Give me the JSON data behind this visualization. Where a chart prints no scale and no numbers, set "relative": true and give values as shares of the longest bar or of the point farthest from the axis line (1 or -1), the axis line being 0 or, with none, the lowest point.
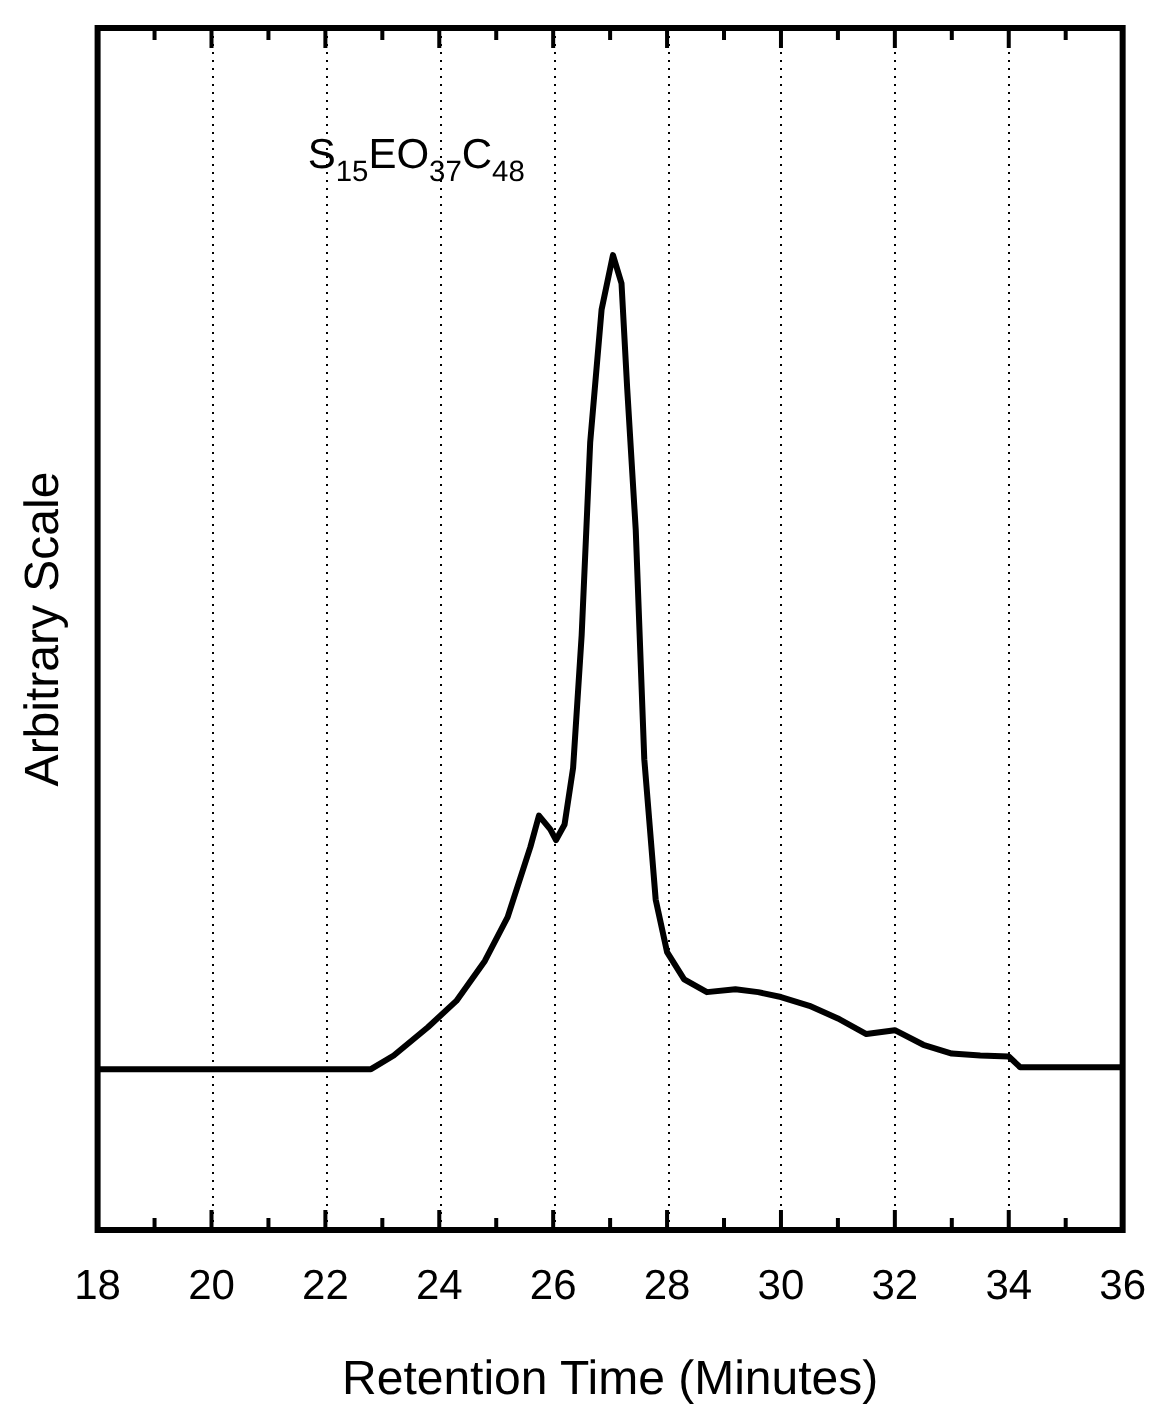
{
  "chart_data": {
    "type": "line",
    "xlabel": "Retention Time (Minutes)",
    "ylabel": "Arbitrary Scale",
    "relative": true,
    "annotations": [
      "S$_{15}$EO$_{37}$C$_{48}$"
    ],
    "xlim": [
      18,
      36
    ],
    "xticks": [
      18,
      {
        "value": 19,
        "label": null
      },
      20,
      {
        "value": 21,
        "label": null
      },
      22,
      {
        "value": 23,
        "label": null
      },
      24,
      {
        "value": 25,
        "label": null
      },
      26,
      {
        "value": 27,
        "label": null
      },
      28,
      {
        "value": 29,
        "label": null
      },
      30,
      {
        "value": 31,
        "label": null
      },
      32,
      {
        "value": 33,
        "label": null
      },
      34,
      {
        "value": 35,
        "label": null
      },
      36
    ],
    "grid": "x",
    "legend": false,
    "marker": "none",
    "line_style": "solid",
    "series": [
      {
        "color": "#000000",
        "x": [
          18,
          22.8,
          23.2,
          23.8,
          24.3,
          24.8,
          25.2,
          25.6,
          25.75,
          25.95,
          26.05,
          26.2,
          26.35,
          26.5,
          26.65,
          26.85,
          27.05,
          27.2,
          27.3,
          27.45,
          27.6,
          27.8,
          28.0,
          28.3,
          28.7,
          29.2,
          29.6,
          30.0,
          30.5,
          31.0,
          31.5,
          32.0,
          32.5,
          33.0,
          33.5,
          34.0,
          34.2,
          36
        ],
        "values": [
          0.165,
          0.165,
          0.179,
          0.208,
          0.235,
          0.276,
          0.321,
          0.393,
          0.425,
          0.411,
          0.4,
          0.416,
          0.474,
          0.61,
          0.808,
          0.944,
          1,
          0.971,
          0.863,
          0.718,
          0.483,
          0.339,
          0.285,
          0.257,
          0.244,
          0.247,
          0.244,
          0.239,
          0.23,
          0.217,
          0.201,
          0.205,
          0.19,
          0.181,
          0.179,
          0.178,
          0.167,
          0.167
        ]
      }
    ]
  }
}
